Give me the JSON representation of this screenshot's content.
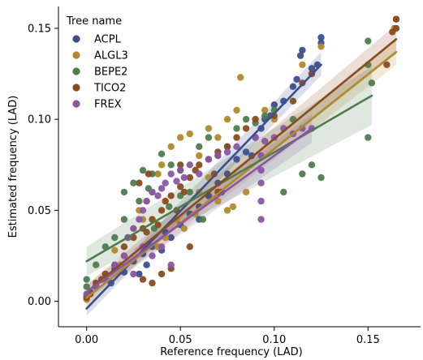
{
  "chart_data": {
    "type": "scatter",
    "xlabel": "Reference frequency (LAD)",
    "ylabel": "Estimated frequency (LAD)",
    "xlim": [
      -0.015,
      0.178
    ],
    "ylim": [
      -0.014,
      0.162
    ],
    "x_ticks": [
      0.0,
      0.05,
      0.1,
      0.15
    ],
    "y_ticks": [
      0.0,
      0.05,
      0.1,
      0.15
    ],
    "x_tick_labels": [
      "0.00",
      "0.05",
      "0.10",
      "0.15"
    ],
    "y_tick_labels": [
      "0.00",
      "0.05",
      "0.10",
      "0.15"
    ],
    "grid": false,
    "legend": {
      "title": "Tree name",
      "position": "top-left"
    },
    "series": [
      {
        "name": "ACPL",
        "color": "#3c4f8e",
        "regression": {
          "x": [
            0.0,
            0.125
          ],
          "y": [
            -0.004,
            0.13
          ]
        },
        "ci": {
          "x": [
            0.0,
            0.125
          ],
          "lower": [
            -0.008,
            0.124
          ],
          "upper": [
            0.0,
            0.137
          ]
        },
        "points": [
          [
            0.0,
            0.003
          ],
          [
            0.002,
            0.005
          ],
          [
            0.005,
            0.008
          ],
          [
            0.01,
            0.012
          ],
          [
            0.015,
            0.018
          ],
          [
            0.02,
            0.016
          ],
          [
            0.025,
            0.022
          ],
          [
            0.03,
            0.026
          ],
          [
            0.032,
            0.02
          ],
          [
            0.035,
            0.03
          ],
          [
            0.04,
            0.028
          ],
          [
            0.042,
            0.038
          ],
          [
            0.045,
            0.035
          ],
          [
            0.05,
            0.042
          ],
          [
            0.055,
            0.048
          ],
          [
            0.06,
            0.052
          ],
          [
            0.065,
            0.058
          ],
          [
            0.07,
            0.065
          ],
          [
            0.075,
            0.07
          ],
          [
            0.08,
            0.078
          ],
          [
            0.085,
            0.082
          ],
          [
            0.09,
            0.09
          ],
          [
            0.093,
            0.095
          ],
          [
            0.095,
            0.1
          ],
          [
            0.098,
            0.102
          ],
          [
            0.1,
            0.108
          ],
          [
            0.105,
            0.11
          ],
          [
            0.11,
            0.118
          ],
          [
            0.112,
            0.122
          ],
          [
            0.114,
            0.135
          ],
          [
            0.115,
            0.138
          ],
          [
            0.12,
            0.128
          ],
          [
            0.123,
            0.13
          ],
          [
            0.125,
            0.145
          ],
          [
            0.125,
            0.142
          ],
          [
            0.013,
            0.01
          ],
          [
            0.028,
            0.015
          ],
          [
            0.06,
            0.045
          ],
          [
            0.072,
            0.06
          ],
          [
            0.088,
            0.08
          ]
        ]
      },
      {
        "name": "ALGL3",
        "color": "#b08a28",
        "regression": {
          "x": [
            0.0,
            0.165
          ],
          "y": [
            0.002,
            0.137
          ]
        },
        "ci": {
          "x": [
            0.0,
            0.165
          ],
          "lower": [
            -0.002,
            0.13
          ],
          "upper": [
            0.006,
            0.145
          ]
        },
        "points": [
          [
            0.0,
            0.001
          ],
          [
            0.005,
            0.01
          ],
          [
            0.01,
            0.015
          ],
          [
            0.02,
            0.025
          ],
          [
            0.025,
            0.04
          ],
          [
            0.03,
            0.045
          ],
          [
            0.035,
            0.06
          ],
          [
            0.038,
            0.07
          ],
          [
            0.04,
            0.075
          ],
          [
            0.045,
            0.085
          ],
          [
            0.05,
            0.09
          ],
          [
            0.055,
            0.092
          ],
          [
            0.06,
            0.08
          ],
          [
            0.065,
            0.095
          ],
          [
            0.07,
            0.09
          ],
          [
            0.075,
            0.1
          ],
          [
            0.08,
            0.105
          ],
          [
            0.082,
            0.123
          ],
          [
            0.085,
            0.06
          ],
          [
            0.07,
            0.055
          ],
          [
            0.075,
            0.05
          ],
          [
            0.078,
            0.052
          ],
          [
            0.065,
            0.068
          ],
          [
            0.06,
            0.06
          ],
          [
            0.058,
            0.048
          ],
          [
            0.052,
            0.04
          ],
          [
            0.048,
            0.045
          ],
          [
            0.042,
            0.035
          ],
          [
            0.038,
            0.03
          ],
          [
            0.032,
            0.055
          ],
          [
            0.028,
            0.05
          ],
          [
            0.022,
            0.035
          ],
          [
            0.018,
            0.02
          ],
          [
            0.015,
            0.028
          ],
          [
            0.1,
            0.1
          ],
          [
            0.095,
            0.105
          ],
          [
            0.115,
            0.13
          ],
          [
            0.12,
            0.125
          ],
          [
            0.125,
            0.14
          ],
          [
            0.165,
            0.155
          ],
          [
            0.164,
            0.15
          ]
        ]
      },
      {
        "name": "BEPE2",
        "color": "#4d7d4d",
        "regression": {
          "x": [
            0.0,
            0.152
          ],
          "y": [
            0.022,
            0.113
          ]
        },
        "ci": {
          "x": [
            0.0,
            0.152
          ],
          "lower": [
            0.014,
            0.097
          ],
          "upper": [
            0.03,
            0.129
          ]
        },
        "points": [
          [
            0.0,
            0.012
          ],
          [
            0.0,
            0.008
          ],
          [
            0.005,
            0.02
          ],
          [
            0.01,
            0.03
          ],
          [
            0.015,
            0.035
          ],
          [
            0.02,
            0.06
          ],
          [
            0.025,
            0.065
          ],
          [
            0.03,
            0.072
          ],
          [
            0.035,
            0.07
          ],
          [
            0.04,
            0.081
          ],
          [
            0.045,
            0.075
          ],
          [
            0.05,
            0.072
          ],
          [
            0.055,
            0.06
          ],
          [
            0.06,
            0.085
          ],
          [
            0.065,
            0.09
          ],
          [
            0.07,
            0.08
          ],
          [
            0.075,
            0.085
          ],
          [
            0.08,
            0.095
          ],
          [
            0.085,
            0.1
          ],
          [
            0.09,
            0.098
          ],
          [
            0.095,
            0.102
          ],
          [
            0.1,
            0.105
          ],
          [
            0.105,
            0.06
          ],
          [
            0.11,
            0.1
          ],
          [
            0.115,
            0.07
          ],
          [
            0.12,
            0.075
          ],
          [
            0.125,
            0.068
          ],
          [
            0.15,
            0.143
          ],
          [
            0.15,
            0.13
          ],
          [
            0.152,
            0.12
          ],
          [
            0.15,
            0.09
          ],
          [
            0.02,
            0.045
          ],
          [
            0.028,
            0.055
          ],
          [
            0.033,
            0.062
          ],
          [
            0.044,
            0.052
          ],
          [
            0.036,
            0.04
          ],
          [
            0.05,
            0.058
          ],
          [
            0.062,
            0.045
          ]
        ]
      },
      {
        "name": "TICO2",
        "color": "#8b4a1c",
        "regression": {
          "x": [
            0.0,
            0.165
          ],
          "y": [
            0.005,
            0.144
          ]
        },
        "ci": {
          "x": [
            0.0,
            0.165
          ],
          "lower": [
            0.001,
            0.136
          ],
          "upper": [
            0.009,
            0.152
          ]
        },
        "points": [
          [
            0.0,
            0.002
          ],
          [
            0.002,
            0.004
          ],
          [
            0.005,
            0.01
          ],
          [
            0.008,
            0.012
          ],
          [
            0.01,
            0.015
          ],
          [
            0.015,
            0.02
          ],
          [
            0.02,
            0.03
          ],
          [
            0.025,
            0.035
          ],
          [
            0.03,
            0.04
          ],
          [
            0.032,
            0.038
          ],
          [
            0.035,
            0.045
          ],
          [
            0.038,
            0.042
          ],
          [
            0.04,
            0.05
          ],
          [
            0.042,
            0.055
          ],
          [
            0.045,
            0.058
          ],
          [
            0.048,
            0.05
          ],
          [
            0.05,
            0.063
          ],
          [
            0.052,
            0.06
          ],
          [
            0.055,
            0.068
          ],
          [
            0.058,
            0.072
          ],
          [
            0.06,
            0.075
          ],
          [
            0.065,
            0.078
          ],
          [
            0.068,
            0.07
          ],
          [
            0.07,
            0.082
          ],
          [
            0.075,
            0.085
          ],
          [
            0.08,
            0.09
          ],
          [
            0.085,
            0.095
          ],
          [
            0.09,
            0.1
          ],
          [
            0.1,
            0.102
          ],
          [
            0.11,
            0.11
          ],
          [
            0.115,
            0.12
          ],
          [
            0.12,
            0.125
          ],
          [
            0.16,
            0.13
          ],
          [
            0.163,
            0.148
          ],
          [
            0.165,
            0.15
          ],
          [
            0.165,
            0.155
          ],
          [
            0.03,
            0.012
          ],
          [
            0.035,
            0.01
          ],
          [
            0.04,
            0.015
          ],
          [
            0.045,
            0.018
          ],
          [
            0.055,
            0.03
          ],
          [
            0.028,
            0.065
          ],
          [
            0.033,
            0.07
          ],
          [
            0.05,
            0.075
          ],
          [
            0.07,
            0.06
          ]
        ]
      },
      {
        "name": "FREX",
        "color": "#8a55a6",
        "regression": {
          "x": [
            0.0,
            0.12
          ],
          "y": [
            0.005,
            0.095
          ]
        },
        "ci": {
          "x": [
            0.0,
            0.12
          ],
          "lower": [
            0.001,
            0.087
          ],
          "upper": [
            0.009,
            0.103
          ]
        },
        "points": [
          [
            0.0,
            0.004
          ],
          [
            0.005,
            0.008
          ],
          [
            0.01,
            0.012
          ],
          [
            0.015,
            0.02
          ],
          [
            0.02,
            0.025
          ],
          [
            0.022,
            0.035
          ],
          [
            0.025,
            0.04
          ],
          [
            0.028,
            0.045
          ],
          [
            0.03,
            0.05
          ],
          [
            0.032,
            0.055
          ],
          [
            0.035,
            0.06
          ],
          [
            0.038,
            0.058
          ],
          [
            0.04,
            0.062
          ],
          [
            0.042,
            0.065
          ],
          [
            0.045,
            0.07
          ],
          [
            0.048,
            0.066
          ],
          [
            0.05,
            0.072
          ],
          [
            0.052,
            0.068
          ],
          [
            0.055,
            0.075
          ],
          [
            0.06,
            0.07
          ],
          [
            0.065,
            0.078
          ],
          [
            0.07,
            0.08
          ],
          [
            0.075,
            0.082
          ],
          [
            0.08,
            0.085
          ],
          [
            0.09,
            0.09
          ],
          [
            0.093,
            0.08
          ],
          [
            0.093,
            0.072
          ],
          [
            0.093,
            0.065
          ],
          [
            0.093,
            0.055
          ],
          [
            0.093,
            0.045
          ],
          [
            0.095,
            0.088
          ],
          [
            0.1,
            0.09
          ],
          [
            0.105,
            0.095
          ],
          [
            0.11,
            0.092
          ],
          [
            0.115,
            0.095
          ],
          [
            0.12,
            0.095
          ],
          [
            0.035,
            0.025
          ],
          [
            0.04,
            0.03
          ],
          [
            0.045,
            0.02
          ],
          [
            0.03,
            0.03
          ],
          [
            0.025,
            0.015
          ]
        ]
      }
    ]
  }
}
